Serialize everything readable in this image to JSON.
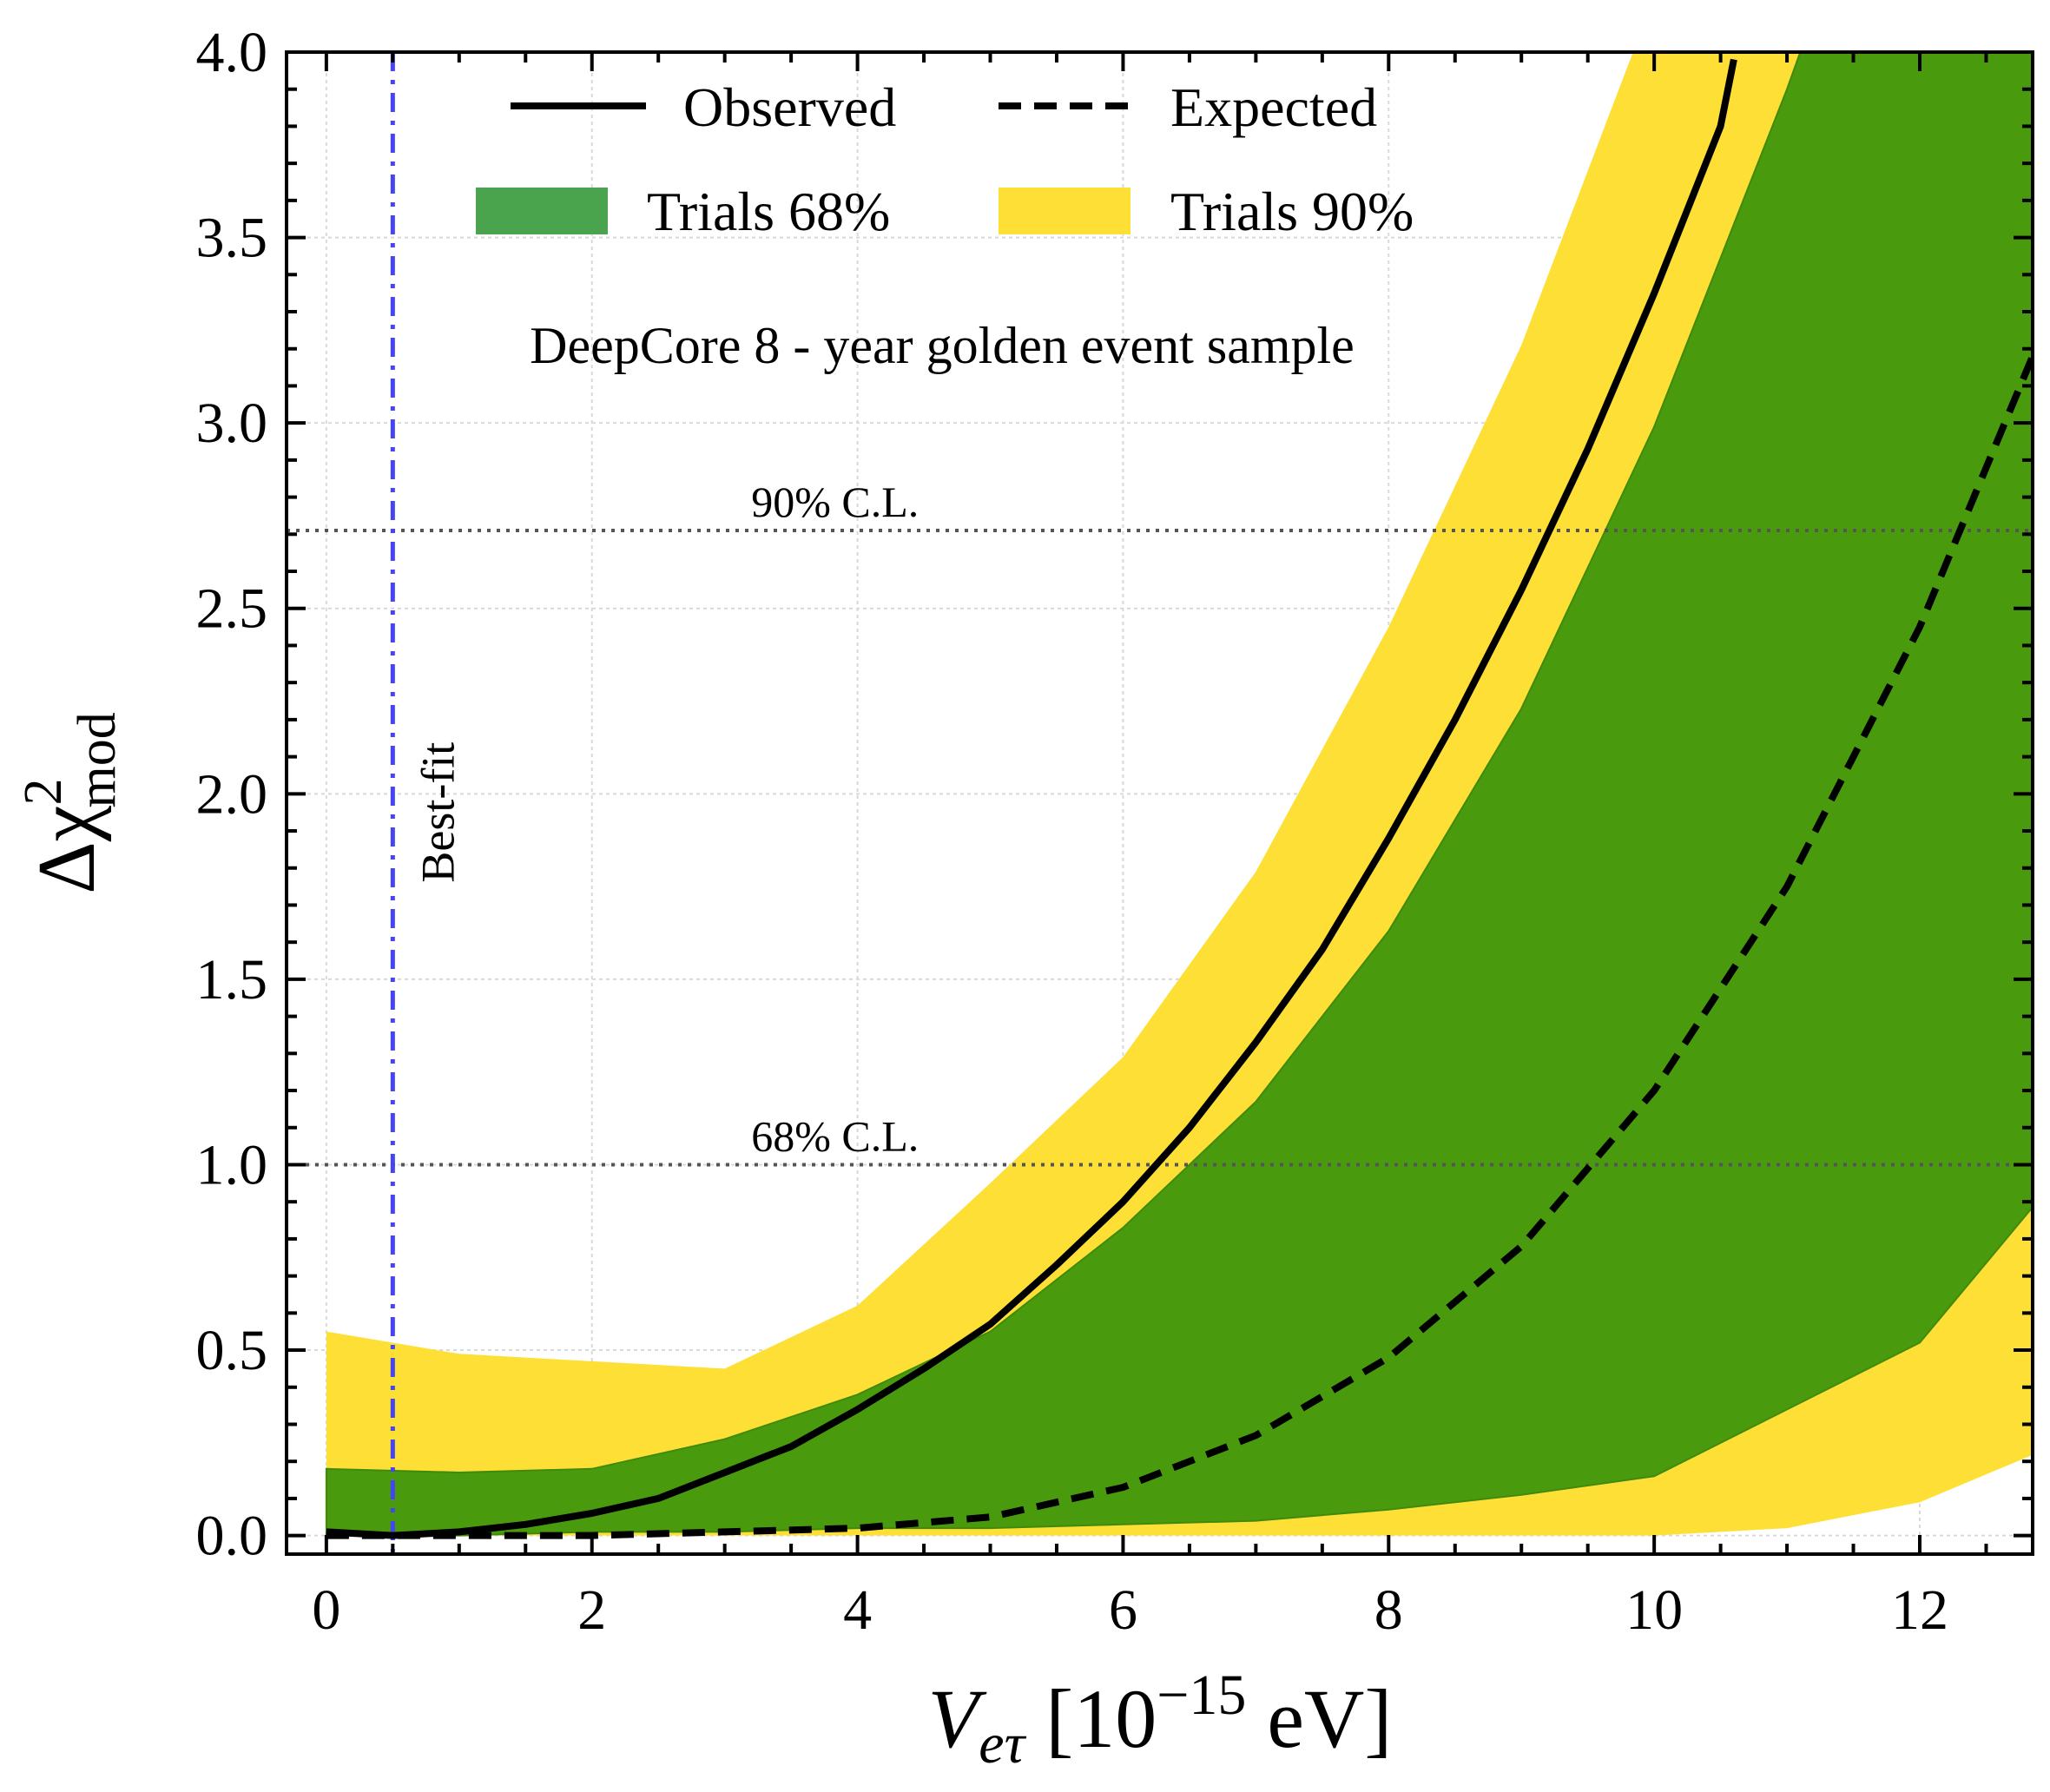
{
  "chart_data": {
    "type": "area",
    "xlim": [
      -0.3,
      12.85
    ],
    "ylim": [
      -0.05,
      4.0
    ],
    "xticks": [
      0,
      2,
      4,
      6,
      8,
      10,
      12
    ],
    "xtick_labels": [
      "0",
      "2",
      "4",
      "6",
      "8",
      "10",
      "12"
    ],
    "yticks": [
      0.0,
      0.5,
      1.0,
      1.5,
      2.0,
      2.5,
      3.0,
      3.5,
      4.0
    ],
    "ytick_labels": [
      "0.0",
      "0.5",
      "1.0",
      "1.5",
      "2.0",
      "2.5",
      "3.0",
      "3.5",
      "4.0"
    ],
    "grid": true,
    "legend_placement": "top-center",
    "xlabel": {
      "main": "V",
      "sub": "eτ",
      "rest": " [10",
      "sup": "−15",
      "unit": " eV]"
    },
    "ylabel": {
      "main": "Δχ",
      "sup": "2",
      "sub": "mod"
    },
    "legend": [
      {
        "label": "Observed",
        "style": "solid-line"
      },
      {
        "label": "Expected",
        "style": "dashed-line"
      },
      {
        "label": "Trials 68%",
        "style": "green-patch"
      },
      {
        "label": "Trials 90%",
        "style": "yellow-patch"
      }
    ],
    "annotations": {
      "sample": "DeepCore 8 - year golden event sample",
      "cl90": {
        "label": "90% C.L.",
        "y": 2.71
      },
      "cl68": {
        "label": "68% C.L.",
        "y": 1.0
      },
      "best_fit": {
        "label": "Best-fit",
        "x": 0.5
      }
    },
    "bands": {
      "x": [
        0,
        1,
        2,
        3,
        4,
        5,
        6,
        7,
        8,
        9,
        10,
        11,
        12,
        13
      ],
      "trials90_upper": [
        0.55,
        0.49,
        0.47,
        0.45,
        0.62,
        0.95,
        1.29,
        1.79,
        2.45,
        3.21,
        4.15,
        5.2,
        6.3,
        7.5
      ],
      "trials90_lower": [
        0.0,
        0.0,
        0.0,
        0.0,
        0.0,
        0.0,
        0.0,
        0.0,
        0.0,
        0.0,
        0.0,
        0.02,
        0.09,
        0.24
      ],
      "trials68_upper": [
        0.18,
        0.17,
        0.18,
        0.26,
        0.38,
        0.55,
        0.83,
        1.17,
        1.63,
        2.23,
        2.99,
        3.9,
        4.9,
        6.0
      ],
      "trials68_lower": [
        0.0,
        0.0,
        0.01,
        0.01,
        0.02,
        0.02,
        0.03,
        0.04,
        0.07,
        0.11,
        0.16,
        0.34,
        0.52,
        0.95
      ]
    },
    "series": [
      {
        "name": "Observed",
        "style": "solid",
        "x": [
          0,
          0.5,
          1,
          1.5,
          2,
          2.5,
          3,
          3.5,
          4,
          4.5,
          5,
          5.5,
          6,
          6.5,
          7,
          7.5,
          8,
          8.5,
          9,
          9.5,
          10,
          10.5,
          10.6
        ],
        "y": [
          0.01,
          0.0,
          0.01,
          0.03,
          0.06,
          0.1,
          0.17,
          0.24,
          0.34,
          0.45,
          0.57,
          0.73,
          0.9,
          1.1,
          1.33,
          1.58,
          1.88,
          2.2,
          2.55,
          2.93,
          3.35,
          3.8,
          3.98
        ]
      },
      {
        "name": "Expected",
        "style": "dashed",
        "x": [
          0,
          1,
          2,
          3,
          4,
          5,
          6,
          7,
          8,
          9,
          10,
          11,
          12,
          12.85
        ],
        "y": [
          0.0,
          0.0,
          0.0,
          0.01,
          0.02,
          0.05,
          0.13,
          0.27,
          0.48,
          0.78,
          1.2,
          1.75,
          2.45,
          3.18
        ]
      }
    ],
    "colors": {
      "observed": "#000000",
      "expected": "#000000",
      "trials68": "#4a9a0e",
      "trials68_legend": "#4aa44e",
      "trials90": "#fedf36",
      "best_fit": "#4545f2",
      "cl_line": "#555555",
      "grid": "#d9d9d9"
    }
  }
}
